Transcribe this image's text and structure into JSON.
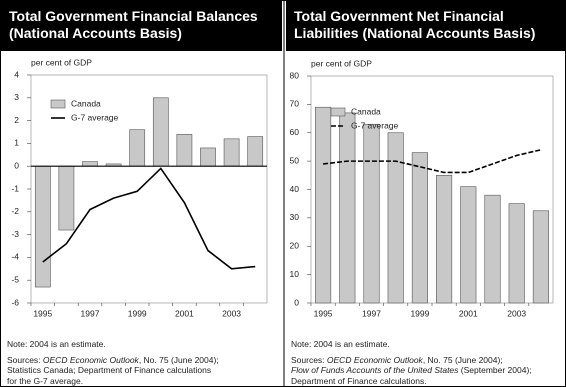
{
  "chart_data": [
    {
      "type": "bar-line",
      "title": "Total Government Financial Balances (National Accounts Basis)",
      "ylabel": "per cent of GDP",
      "categories": [
        "1995",
        null,
        "1997",
        null,
        "1999",
        null,
        "2001",
        null,
        "2003",
        null
      ],
      "series": [
        {
          "name": "Canada",
          "type": "bar",
          "color": "#c8c8c8",
          "values": [
            -5.3,
            -2.8,
            0.2,
            0.1,
            1.6,
            3.0,
            1.4,
            0.8,
            1.2,
            1.3
          ]
        },
        {
          "name": "G-7 average",
          "type": "line",
          "color": "#000000",
          "values": [
            -4.2,
            -3.4,
            -1.9,
            -1.4,
            -1.1,
            -0.1,
            -1.6,
            -3.7,
            -4.5,
            -4.4
          ]
        }
      ],
      "ylim": [
        -6,
        4
      ],
      "yticks": [
        -6,
        -5,
        -4,
        -3,
        -2,
        -1,
        0,
        1,
        2,
        3,
        4
      ],
      "zero_line": true,
      "note": "Note: 2004 is an estimate.",
      "sources": [
        "Sources: ",
        "OECD Economic Outlook",
        ", No. 75 (June 2004);",
        "Statistics Canada; Department of Finance calculations",
        "for the G-7 average."
      ]
    },
    {
      "type": "bar-line",
      "title": "Total Government Net Financial Liabilities (National Accounts Basis)",
      "ylabel": "per cent of GDP",
      "categories": [
        "1995",
        null,
        "1997",
        null,
        "1999",
        null,
        "2001",
        null,
        "2003",
        null
      ],
      "series": [
        {
          "name": "Canada",
          "type": "bar",
          "color": "#c8c8c8",
          "values": [
            69,
            67,
            63,
            60,
            53,
            45,
            41,
            38,
            35,
            32.5
          ]
        },
        {
          "name": "G-7 average",
          "type": "line",
          "color": "#000000",
          "dashed": true,
          "values": [
            49,
            50,
            50,
            50,
            48,
            46,
            46,
            49,
            52,
            54
          ]
        }
      ],
      "ylim": [
        0,
        80
      ],
      "yticks": [
        0,
        10,
        20,
        30,
        40,
        50,
        60,
        70,
        80
      ],
      "zero_line": false,
      "note": "Note: 2004 is an estimate.",
      "sources": [
        "Sources: ",
        "OECD Economic Outlook",
        ", No. 75 (June 2004);",
        "Flow of Funds Accounts of the United States",
        " (September 2004);",
        "Department of Finance calculations."
      ]
    }
  ]
}
